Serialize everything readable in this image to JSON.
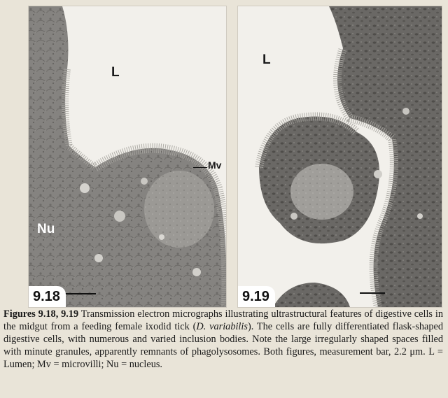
{
  "figure_a": {
    "number": "9.18",
    "label_lumen": "L",
    "label_microvilli": "Mv",
    "label_nucleus": "Nu"
  },
  "figure_b": {
    "number": "9.19",
    "label_lumen": "L"
  },
  "caption": {
    "head": "Figures 9.18, 9.19",
    "part1": " Transmission electron micrographs illustrating ultrastructural features of digestive cells in the midgut from a feeding female ixodid tick (",
    "species": "D. variabilis",
    "part2": "). The cells are fully differentiated flask-shaped digestive cells, with numerous and varied inclusion bodies. Note the large irregularly shaped spaces filled with minute granules, apparently remnants of phagolysosomes. Both figures, measurement bar, 2.2 μm. L = Lumen; Mv = microvilli; Nu = nucleus."
  },
  "colors": {
    "paper": "#e9e4d8",
    "lumen": "#f2f0eb",
    "cytoplasm": "#8c8a86",
    "dark_cytoplasm": "#5e5c59",
    "microvilli": "#a7a5a0"
  }
}
